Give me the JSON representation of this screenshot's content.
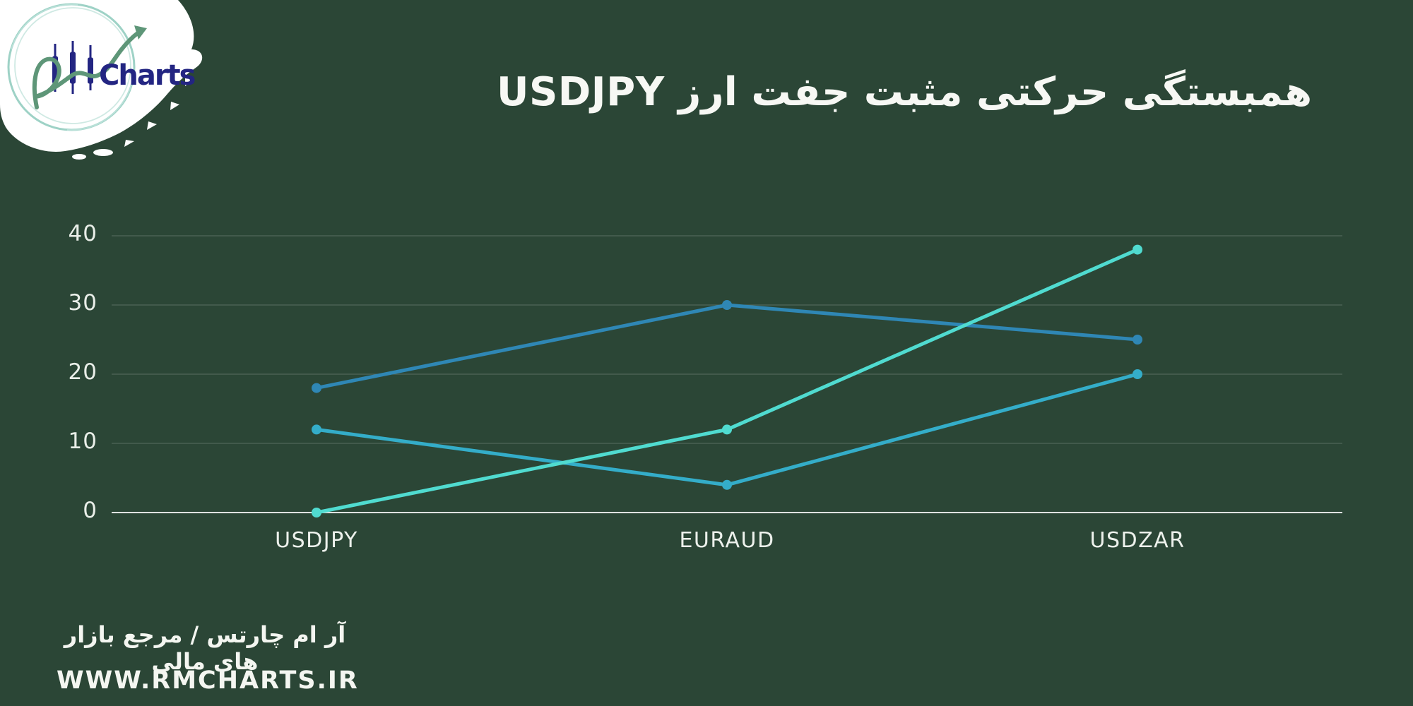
{
  "page": {
    "background_color": "#2B4636",
    "text_color": "#F4F6F1"
  },
  "logo": {
    "wordmark": "Charts",
    "monogram": "RM",
    "colors": {
      "splash": "#FFFFFF",
      "ring_outer": "#9ED2C6",
      "ring_inner": "#CFE9E3",
      "script_green": "#5E9678",
      "navy": "#232582"
    }
  },
  "title": {
    "text": "همبستگی حرکتی مثبت جفت ارز USDJPY"
  },
  "chart_data": {
    "type": "line",
    "title": "همبستگی حرکتی مثبت جفت ارز USDJPY",
    "categories": [
      "USDJPY",
      "EURAUD",
      "USDZAR"
    ],
    "series": [
      {
        "name": "line-1-blue",
        "color": "#2F87B5",
        "values": [
          18,
          30,
          25
        ]
      },
      {
        "name": "line-2-teal",
        "color": "#34ADC9",
        "values": [
          12,
          4,
          20
        ]
      },
      {
        "name": "line-3-cyan",
        "color": "#50DBD0",
        "values": [
          0,
          12,
          38
        ]
      }
    ],
    "xlabel": "",
    "ylabel": "",
    "ylim": [
      0,
      40
    ],
    "yticks": [
      0,
      10,
      20,
      30,
      40
    ],
    "grid": true,
    "legend": false,
    "marker": "circle",
    "grid_color": "rgba(255,255,255,0.22)",
    "axis_color": "rgba(255,255,255,0.85)"
  },
  "footer": {
    "tagline": "آر ام چارتس / مرجع بازار های مالی",
    "website": "WWW.RMCHARTS.IR"
  }
}
